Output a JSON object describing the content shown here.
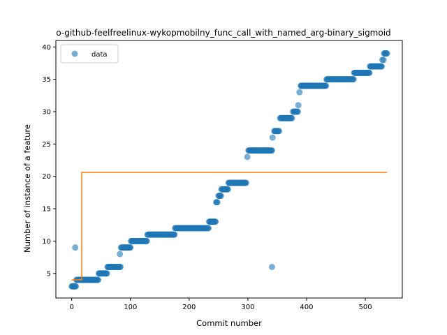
{
  "chart_data": {
    "type": "scatter",
    "title": "o-github-feelfreelinux-wykopmobilny_func_call_with_named_arg-binary_sigmoid",
    "xlabel": "Commit number",
    "ylabel": "Number of instance of a feature",
    "xlim": [
      -27,
      563
    ],
    "ylim": [
      1.2,
      41
    ],
    "xticks": [
      0,
      100,
      200,
      300,
      400,
      500
    ],
    "yticks": [
      5,
      10,
      15,
      20,
      25,
      30,
      35,
      40
    ],
    "grid": false,
    "legend_position": "top-left",
    "colors": {
      "data": "#1f77b4",
      "fit": "#ff7f0e"
    },
    "series": [
      {
        "name": "data",
        "kind": "scatter",
        "steps": [
          [
            0,
            7,
            3
          ],
          [
            8,
            45,
            4
          ],
          [
            46,
            60,
            5
          ],
          [
            61,
            83,
            6
          ],
          [
            84,
            100,
            9
          ],
          [
            101,
            128,
            10
          ],
          [
            129,
            175,
            11
          ],
          [
            176,
            233,
            12
          ],
          [
            234,
            245,
            13
          ],
          [
            246,
            248,
            16
          ],
          [
            250,
            254,
            17
          ],
          [
            255,
            266,
            18
          ],
          [
            267,
            297,
            19
          ],
          [
            301,
            341,
            24
          ],
          [
            345,
            353,
            27
          ],
          [
            355,
            375,
            29
          ],
          [
            377,
            385,
            30
          ],
          [
            390,
            433,
            34
          ],
          [
            434,
            480,
            35
          ],
          [
            481,
            507,
            36
          ],
          [
            508,
            528,
            37
          ],
          [
            532,
            537,
            39
          ]
        ],
        "extra_points": [
          [
            6,
            9
          ],
          [
            82,
            8
          ],
          [
            299,
            23
          ],
          [
            341,
            6
          ],
          [
            342,
            26
          ],
          [
            386,
            31
          ],
          [
            388,
            33
          ],
          [
            529,
            38
          ],
          [
            531,
            38
          ]
        ]
      },
      {
        "kind": "line",
        "points": [
          [
            0,
            4
          ],
          [
            17,
            4
          ],
          [
            17,
            20.6
          ],
          [
            537,
            20.6
          ]
        ]
      }
    ]
  }
}
